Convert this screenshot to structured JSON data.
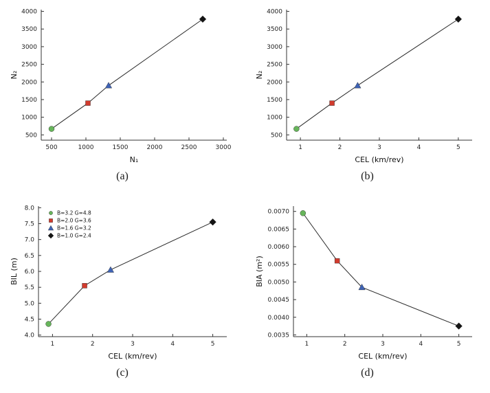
{
  "captions": {
    "a": "(a)",
    "b": "(b)",
    "c": "(c)",
    "d": "(d)"
  },
  "colors": {
    "green": "#67b55b",
    "red": "#d23b2e",
    "blue": "#3f63b5",
    "black": "#141414",
    "line": "#2a2a2a",
    "axis": "#333333"
  },
  "chart_data": [
    {
      "key": "a",
      "type": "scatter",
      "title": "",
      "xlabel": "N₁",
      "ylabel": "N₂",
      "xlim": [
        350,
        3050
      ],
      "ylim": [
        350,
        4050
      ],
      "xticks": [
        500,
        1000,
        1500,
        2000,
        2500,
        3000
      ],
      "yticks": [
        500,
        1000,
        1500,
        2000,
        2500,
        3000,
        3500,
        4000
      ],
      "xdec": 0,
      "ydec": 0,
      "ml": 48,
      "grid": false,
      "line": true,
      "points": [
        {
          "x": 500,
          "y": 670,
          "marker": "circle",
          "color": "green"
        },
        {
          "x": 1030,
          "y": 1400,
          "marker": "square",
          "color": "red"
        },
        {
          "x": 1330,
          "y": 1900,
          "marker": "triangle",
          "color": "blue"
        },
        {
          "x": 2700,
          "y": 3780,
          "marker": "diamond",
          "color": "black"
        }
      ]
    },
    {
      "key": "b",
      "type": "scatter",
      "title": "",
      "xlabel": "CEL (km/rev)",
      "ylabel": "N₂",
      "xlim": [
        0.65,
        5.35
      ],
      "ylim": [
        350,
        4050
      ],
      "xticks": [
        1,
        2,
        3,
        4,
        5
      ],
      "yticks": [
        500,
        1000,
        1500,
        2000,
        2500,
        3000,
        3500,
        4000
      ],
      "xdec": 0,
      "ydec": 0,
      "ml": 48,
      "grid": false,
      "line": true,
      "points": [
        {
          "x": 0.9,
          "y": 670,
          "marker": "circle",
          "color": "green"
        },
        {
          "x": 1.8,
          "y": 1400,
          "marker": "square",
          "color": "red"
        },
        {
          "x": 2.45,
          "y": 1900,
          "marker": "triangle",
          "color": "blue"
        },
        {
          "x": 5.0,
          "y": 3780,
          "marker": "diamond",
          "color": "black"
        }
      ]
    },
    {
      "key": "c",
      "type": "scatter",
      "title": "",
      "xlabel": "CEL (km/rev)",
      "ylabel": "BIL (m)",
      "xlim": [
        0.65,
        5.35
      ],
      "ylim": [
        3.95,
        8.05
      ],
      "xticks": [
        1,
        2,
        3,
        4,
        5
      ],
      "yticks": [
        4.0,
        4.5,
        5.0,
        5.5,
        6.0,
        6.5,
        7.0,
        7.5,
        8.0
      ],
      "xdec": 0,
      "ydec": 1,
      "ml": 44,
      "grid": false,
      "line": true,
      "legend": true,
      "legend_position": "top-left",
      "points": [
        {
          "x": 0.9,
          "y": 4.35,
          "marker": "circle",
          "color": "green",
          "name": "B=3.2  G=4.8"
        },
        {
          "x": 1.8,
          "y": 5.55,
          "marker": "square",
          "color": "red",
          "name": "B=2.0  G=3.6"
        },
        {
          "x": 2.45,
          "y": 6.05,
          "marker": "triangle",
          "color": "blue",
          "name": "B=1.6  G=3.2"
        },
        {
          "x": 5.0,
          "y": 7.55,
          "marker": "diamond",
          "color": "black",
          "name": "B=1.0  G=2.4"
        }
      ]
    },
    {
      "key": "d",
      "type": "scatter",
      "title": "",
      "xlabel": "CEL (km/rev)",
      "ylabel": "BIA (m²)",
      "xlim": [
        0.65,
        5.35
      ],
      "ylim": [
        0.00345,
        0.00715
      ],
      "xticks": [
        1,
        2,
        3,
        4,
        5
      ],
      "yticks": [
        0.0035,
        0.004,
        0.0045,
        0.005,
        0.0055,
        0.006,
        0.0065,
        0.007
      ],
      "xdec": 0,
      "ydec": 4,
      "ml": 58,
      "grid": false,
      "line": true,
      "points": [
        {
          "x": 0.9,
          "y": 0.00695,
          "marker": "circle",
          "color": "green"
        },
        {
          "x": 1.8,
          "y": 0.0056,
          "marker": "square",
          "color": "red"
        },
        {
          "x": 2.45,
          "y": 0.00485,
          "marker": "triangle",
          "color": "blue"
        },
        {
          "x": 5.0,
          "y": 0.00375,
          "marker": "diamond",
          "color": "black"
        }
      ]
    }
  ]
}
